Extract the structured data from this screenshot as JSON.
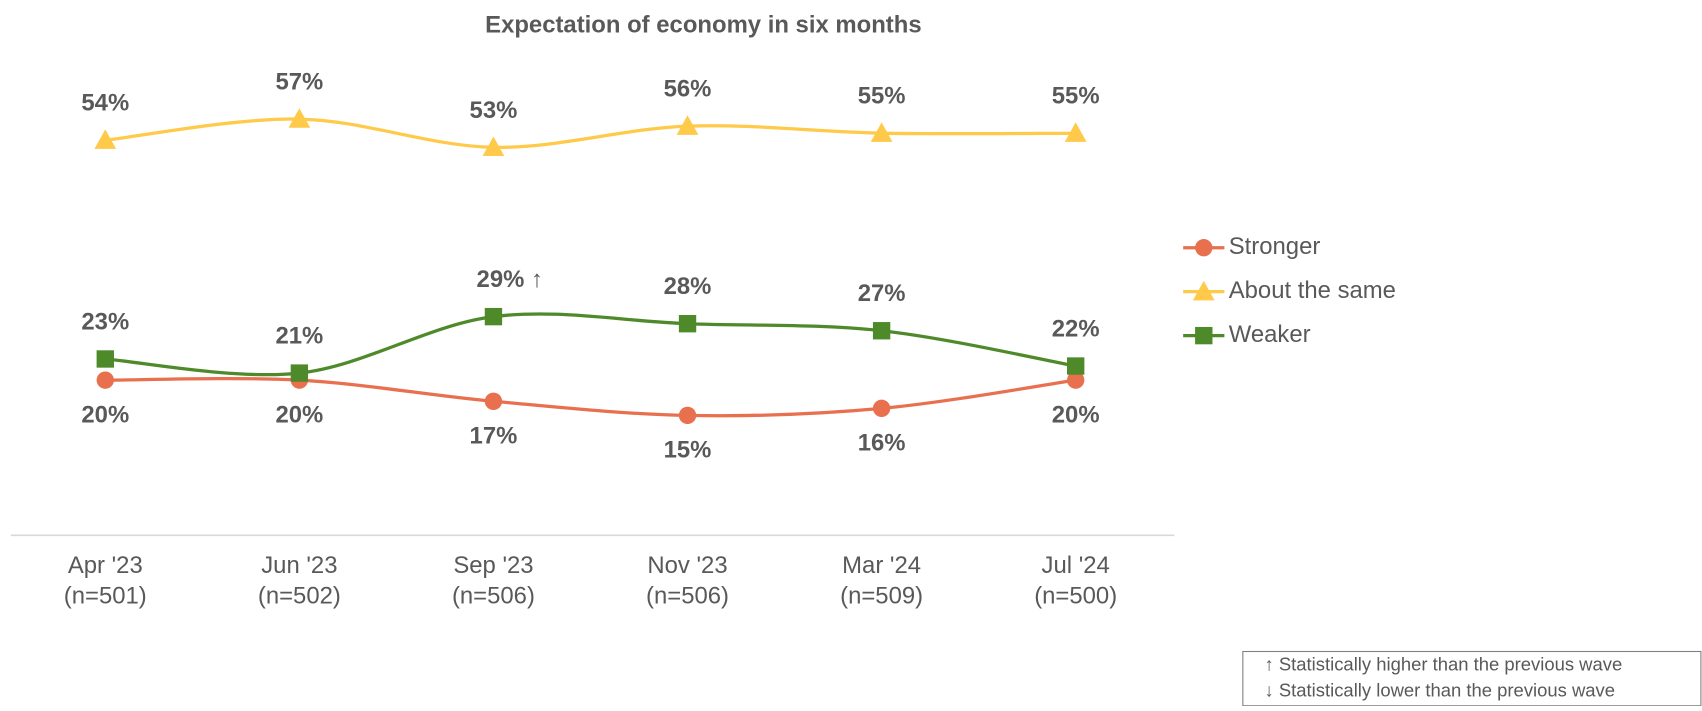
{
  "chart_data": {
    "type": "line",
    "title": "Expectation of economy in six months",
    "categories": [
      "Apr '23",
      "Jun '23",
      "Sep '23",
      "Nov '23",
      "Mar '24",
      "Jul '24"
    ],
    "sample_sizes": [
      "(n=501)",
      "(n=502)",
      "(n=506)",
      "(n=506)",
      "(n=509)",
      "(n=500)"
    ],
    "series": [
      {
        "name": "Stronger",
        "color": "#e8704e",
        "marker": "circle",
        "values": [
          20,
          20,
          17,
          15,
          16,
          20
        ],
        "value_labels": [
          "20%",
          "20%",
          "17%",
          "15%",
          "16%",
          "20%"
        ]
      },
      {
        "name": "About the same",
        "color": "#ffc94a",
        "marker": "triangle",
        "values": [
          54,
          57,
          53,
          56,
          55,
          55
        ],
        "value_labels": [
          "54%",
          "57%",
          "53%",
          "56%",
          "55%",
          "55%"
        ]
      },
      {
        "name": "Weaker",
        "color": "#4e8a2a",
        "marker": "square",
        "values": [
          23,
          21,
          29,
          28,
          27,
          22
        ],
        "value_labels": [
          "23%",
          "21%",
          "29% ↑",
          "28%",
          "27%",
          "22%"
        ]
      }
    ],
    "ylim": [
      0,
      70
    ],
    "legend": "right",
    "notes": [
      "↑ Statistically higher than the previous wave",
      "↓ Statistically lower than the previous wave"
    ]
  }
}
